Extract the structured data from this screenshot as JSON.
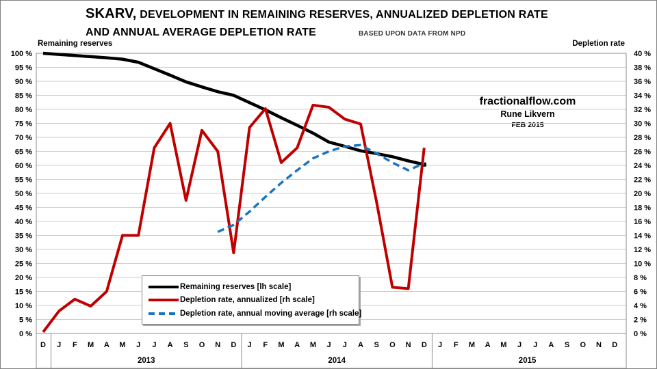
{
  "title": {
    "prefix": "SKARV,",
    "line1": "DEVELOPMENT IN REMAINING RESERVES, ANNUALIZED DEPLETION RATE",
    "line2": "AND ANNUAL AVERAGE DEPLETION RATE",
    "subtitle": "BASED UPON DATA FROM NPD"
  },
  "axis_labels": {
    "left": "Remaining reserves",
    "right": "Depletion rate"
  },
  "annotation": {
    "site": "fractionalflow.com",
    "author": "Rune Likvern",
    "date": "FEB 2015"
  },
  "legend": [
    {
      "label": "Remaining reserves [lh scale]",
      "color": "#000000",
      "style": "solid"
    },
    {
      "label": "Depletion rate, annualized [rh scale]",
      "color": "#c00000",
      "style": "solid"
    },
    {
      "label": "Depletion rate, annual moving average [rh scale]",
      "color": "#1b75be",
      "style": "dashed"
    }
  ],
  "colors": {
    "reserves_line": "#000000",
    "depletion_line": "#c00000",
    "moving_avg_line": "#1b75be",
    "gridline": "#cccccc",
    "plot_border": "#8c8c8c"
  },
  "chart_data": {
    "type": "line",
    "title": "SKARV, development in remaining reserves, annualized depletion rate and annual average depletion rate",
    "x_axis": {
      "months": [
        "D",
        "J",
        "F",
        "M",
        "A",
        "M",
        "J",
        "J",
        "A",
        "S",
        "O",
        "N",
        "D",
        "J",
        "F",
        "M",
        "A",
        "M",
        "J",
        "J",
        "A",
        "S",
        "O",
        "N",
        "D",
        "J",
        "F",
        "M",
        "A",
        "M",
        "J",
        "J",
        "A",
        "S",
        "O",
        "N",
        "D"
      ],
      "years": [
        {
          "label": "2013",
          "from": 1,
          "to": 12
        },
        {
          "label": "2014",
          "from": 13,
          "to": 24
        },
        {
          "label": "2015",
          "from": 25,
          "to": 36
        }
      ]
    },
    "y_left": {
      "label": "Remaining reserves",
      "min": 0,
      "max": 100,
      "step": 5,
      "suffix": " %"
    },
    "y_right": {
      "label": "Depletion rate",
      "min": 0,
      "max": 40,
      "step": 2,
      "suffix": " %"
    },
    "grid": true,
    "legend_position": "inside-bottom-left",
    "series": [
      {
        "name": "Remaining reserves [lh scale]",
        "axis": "left",
        "color": "#000000",
        "style": "solid",
        "width": 4.5,
        "start_index": 0,
        "end_marker": true,
        "values": [
          100,
          99.6,
          99.2,
          98.8,
          98.4,
          97.9,
          96.8,
          94.5,
          92.2,
          89.8,
          88.0,
          86.3,
          85.0,
          82.4,
          79.8,
          77.0,
          74.3,
          71.5,
          68.3,
          66.8,
          65.2,
          64.2,
          63.1,
          61.6,
          60.3
        ]
      },
      {
        "name": "Depletion rate, annualized [rh scale]",
        "axis": "right",
        "color": "#c00000",
        "style": "solid",
        "width": 4,
        "start_index": 0,
        "end_marker": false,
        "values": [
          0.2,
          3.2,
          4.9,
          3.9,
          6.0,
          14.0,
          14.0,
          26.5,
          30.0,
          19.0,
          29.0,
          26.0,
          11.5,
          29.4,
          32.1,
          24.4,
          26.5,
          32.6,
          32.3,
          30.6,
          29.9,
          18.8,
          6.6,
          6.4,
          26.5
        ]
      },
      {
        "name": "Depletion rate, annual moving average [rh scale]",
        "axis": "right",
        "color": "#1b75be",
        "style": "dashed",
        "width": 3.5,
        "start_index": 11,
        "end_marker": false,
        "values": [
          14.5,
          15.5,
          17.4,
          19.5,
          21.5,
          23.3,
          25.0,
          26.0,
          26.7,
          26.9,
          25.7,
          24.4,
          23.3,
          24.3
        ]
      }
    ]
  }
}
